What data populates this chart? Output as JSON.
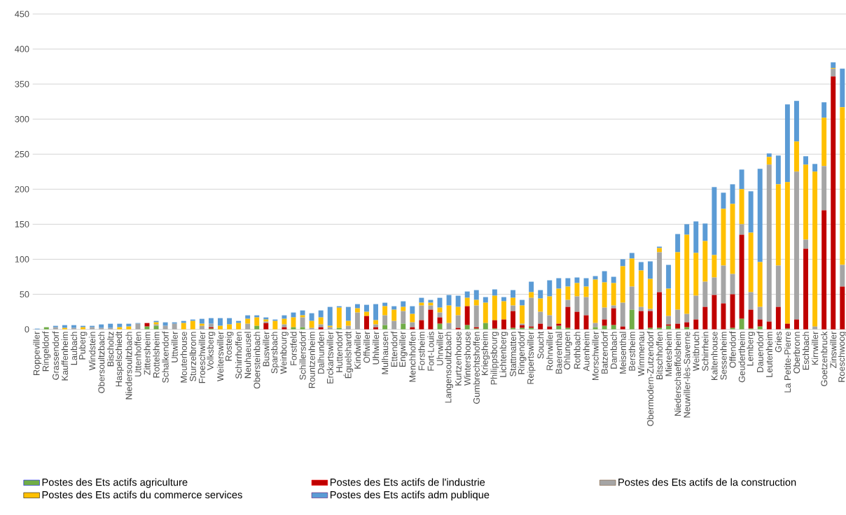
{
  "chart_data": {
    "type": "bar",
    "stacked": true,
    "grid": "y",
    "legend": "bottom",
    "ylim": [
      0,
      450
    ],
    "yticks": [
      0,
      50,
      100,
      150,
      200,
      250,
      300,
      350,
      400,
      450
    ],
    "categories": [
      "Roppeviller",
      "Ringeldorf",
      "Grassendorf",
      "Kauffenheim",
      "Laubach",
      "Puberg",
      "Windstein",
      "Obersoultzbach",
      "Bischoltz",
      "Haspelschiedt",
      "Niedersoultzbach",
      "Uttenhoffen",
      "Zittersheim",
      "Rottelsheim",
      "Schalkendorf",
      "Uttwiller",
      "Mouterhouse",
      "Sturzelbronn",
      "Froeschwiller",
      "Volksberg",
      "Weiterswiller",
      "Rosteig",
      "Schirrhoffen",
      "Neuhaeusel",
      "Obersteinbach",
      "Buswiller",
      "Sparsbach",
      "Weinbourg",
      "Forstfeld",
      "Schillersdorf",
      "Rountzenheim",
      "Dalhunden",
      "Erckartswiller",
      "Huttendorf",
      "Éguelshardt",
      "Kindwiller",
      "Offwiller",
      "Uhlwiller",
      "Mulhausen",
      "Ettendorf",
      "Engwiller",
      "Menchhoffen",
      "Forstheim",
      "Fort-Louis",
      "Uhrwiller",
      "Langensoultzbach",
      "Kurtzenhouse",
      "Wintershouse",
      "Gumbrechtshoffen",
      "Kriegsheim",
      "Philippsbourg",
      "Lichtenberg",
      "Stattmatten",
      "Ringendorf",
      "Reipertswiller",
      "Soucht",
      "Rohrwiller",
      "Baerenthal",
      "Ohlungen",
      "Rothbach",
      "Auenheim",
      "Morschwiller",
      "Batzendorf",
      "Dambach",
      "Meisenthal",
      "Berstheim",
      "Wimmenau",
      "Obermodern-Zutzendorf",
      "Bitschhoffen",
      "Mietesheim",
      "Niederschaeffolsheim",
      "Neuwiller-lès-Saverne",
      "Weitbruch",
      "Schirrhein",
      "Kaltenhouse",
      "Sessenheim",
      "Offendorf",
      "Geudertheim",
      "Lemberg",
      "Dauendorf",
      "Leutenheim",
      "Gries",
      "La Petite-Pierre",
      "Oberbronn",
      "Eschbach",
      "Kirrwiller",
      "Goetzenbruck",
      "Zinswiller",
      "Roeschwoog"
    ],
    "series": [
      {
        "name": "Postes des Ets actifs agriculture",
        "color": "#70ad47",
        "values": [
          0,
          3,
          0,
          0,
          0,
          0,
          0,
          0,
          0,
          0,
          0,
          0,
          4,
          5,
          0,
          0,
          0,
          0,
          0,
          1,
          0,
          0,
          0,
          0,
          5,
          0,
          0,
          0,
          3,
          3,
          0,
          0,
          0,
          2,
          0,
          0,
          0,
          0,
          6,
          0,
          8,
          0,
          0,
          0,
          8,
          0,
          0,
          6,
          1,
          9,
          1,
          0,
          2,
          2,
          2,
          0,
          0,
          5,
          2,
          0,
          0,
          3,
          5,
          6,
          0,
          28,
          0,
          2,
          2,
          5,
          1,
          3,
          0,
          0,
          0,
          0,
          2,
          15,
          1,
          4,
          0,
          0,
          1,
          0,
          0,
          0,
          0,
          0,
          0
        ]
      },
      {
        "name": "Postes des Ets actifs de l'industrie",
        "color": "#c00000",
        "values": [
          0,
          0,
          0,
          0,
          0,
          0,
          0,
          0,
          0,
          0,
          0,
          0,
          5,
          0,
          0,
          0,
          0,
          0,
          0,
          2,
          0,
          0,
          0,
          0,
          0,
          9,
          0,
          3,
          0,
          0,
          0,
          3,
          0,
          0,
          0,
          0,
          19,
          3,
          0,
          0,
          0,
          3,
          13,
          28,
          9,
          0,
          2,
          27,
          2,
          0,
          12,
          14,
          24,
          4,
          2,
          8,
          4,
          3,
          30,
          25,
          20,
          0,
          9,
          24,
          4,
          0,
          26,
          24,
          51,
          2,
          7,
          7,
          14,
          32,
          49,
          37,
          48,
          120,
          27,
          10,
          11,
          32,
          7,
          14,
          115,
          0,
          170,
          361,
          61
        ]
      },
      {
        "name": "Postes des Ets actifs de la construction",
        "color": "#a5a5a5",
        "values": [
          0,
          0,
          3,
          0,
          2,
          0,
          3,
          2,
          2,
          0,
          0,
          8,
          0,
          2,
          5,
          8,
          0,
          0,
          5,
          5,
          0,
          0,
          0,
          8,
          0,
          2,
          0,
          4,
          0,
          14,
          2,
          4,
          3,
          0,
          5,
          24,
          0,
          4,
          14,
          12,
          18,
          7,
          21,
          6,
          7,
          9,
          18,
          0,
          31,
          0,
          0,
          0,
          8,
          2,
          41,
          17,
          16,
          0,
          10,
          22,
          26,
          6,
          17,
          4,
          34,
          33,
          6,
          3,
          57,
          12,
          20,
          12,
          34,
          36,
          25,
          54,
          29,
          15,
          25,
          18,
          224,
          59,
          0,
          211,
          13,
          4,
          63,
          11,
          31
        ]
      },
      {
        "name": "Postes des Ets actifs du commerce services",
        "color": "#ffc000",
        "values": [
          0,
          0,
          0,
          2,
          0,
          3,
          0,
          0,
          0,
          3,
          4,
          0,
          0,
          3,
          0,
          0,
          9,
          12,
          3,
          0,
          5,
          7,
          9,
          7,
          12,
          3,
          12,
          8,
          14,
          3,
          10,
          10,
          2,
          29,
          7,
          6,
          6,
          6,
          13,
          16,
          6,
          12,
          4,
          4,
          7,
          25,
          12,
          12,
          8,
          29,
          35,
          26,
          11,
          26,
          8,
          19,
          27,
          50,
          19,
          19,
          15,
          62,
          36,
          32,
          52,
          40,
          52,
          43,
          6,
          39,
          82,
          113,
          61,
          58,
          32,
          81,
          100,
          50,
          85,
          64,
          11,
          116,
          202,
          43,
          107,
          221,
          69,
          1,
          225
        ]
      },
      {
        "name": "Postes des Ets actifs adm publique",
        "color": "#5b9bd5",
        "values": [
          1,
          0,
          2,
          4,
          4,
          2,
          2,
          5,
          6,
          5,
          4,
          1,
          0,
          2,
          5,
          2,
          3,
          2,
          7,
          8,
          11,
          9,
          3,
          5,
          3,
          3,
          2,
          5,
          7,
          7,
          11,
          10,
          27,
          2,
          20,
          6,
          10,
          23,
          5,
          5,
          8,
          11,
          7,
          4,
          14,
          15,
          16,
          9,
          14,
          8,
          9,
          6,
          11,
          8,
          15,
          12,
          23,
          15,
          12,
          8,
          12,
          5,
          16,
          9,
          10,
          8,
          12,
          25,
          2,
          34,
          26,
          15,
          45,
          25,
          97,
          23,
          28,
          28,
          59,
          133,
          5,
          41,
          111,
          58,
          12,
          11,
          22,
          8,
          55
        ]
      }
    ]
  }
}
